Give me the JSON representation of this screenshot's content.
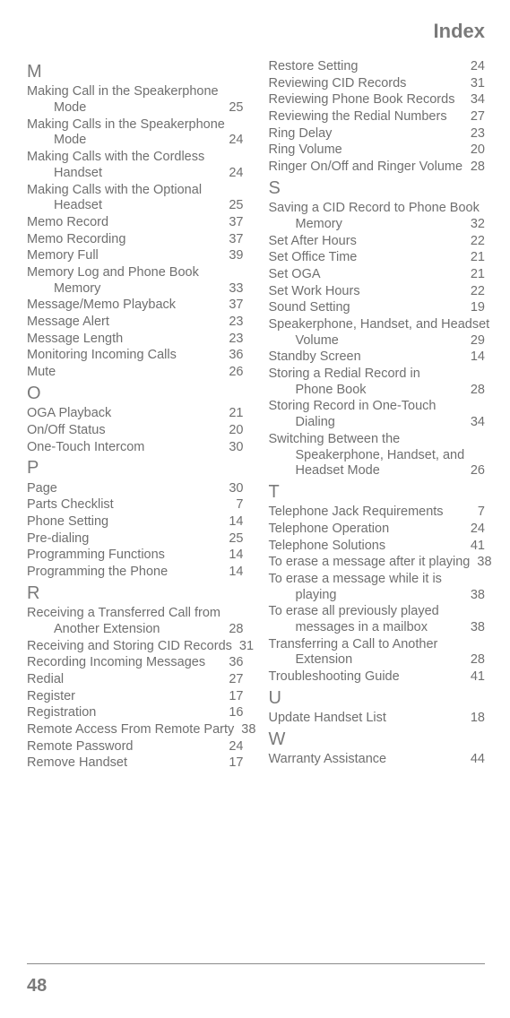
{
  "header_title": "Index",
  "page_number": "48",
  "sections": [
    {
      "letter": "M",
      "entries": [
        {
          "lines": [
            "Making Call in the Speakerphone",
            "Mode"
          ],
          "page": "25"
        },
        {
          "lines": [
            "Making Calls in the Speakerphone",
            "Mode"
          ],
          "page": "24"
        },
        {
          "lines": [
            "Making Calls with the Cordless",
            "Handset"
          ],
          "page": "24"
        },
        {
          "lines": [
            "Making Calls with the Optional",
            "Headset"
          ],
          "page": "25"
        },
        {
          "lines": [
            "Memo Record"
          ],
          "page": "37"
        },
        {
          "lines": [
            "Memo Recording"
          ],
          "page": "37"
        },
        {
          "lines": [
            "Memory Full"
          ],
          "page": "39"
        },
        {
          "lines": [
            "Memory Log and Phone Book",
            "Memory"
          ],
          "page": "33"
        },
        {
          "lines": [
            "Message/Memo Playback"
          ],
          "page": "37"
        },
        {
          "lines": [
            "Message Alert"
          ],
          "page": "23"
        },
        {
          "lines": [
            "Message Length"
          ],
          "page": "23"
        },
        {
          "lines": [
            "Monitoring Incoming Calls"
          ],
          "page": "36"
        },
        {
          "lines": [
            "Mute"
          ],
          "page": "26"
        }
      ]
    },
    {
      "letter": "O",
      "entries": [
        {
          "lines": [
            "OGA Playback"
          ],
          "page": "21"
        },
        {
          "lines": [
            "On/Off Status"
          ],
          "page": "20"
        },
        {
          "lines": [
            "One-Touch Intercom"
          ],
          "page": "30"
        }
      ]
    },
    {
      "letter": "P",
      "entries": [
        {
          "lines": [
            "Page"
          ],
          "page": "30"
        },
        {
          "lines": [
            "Parts Checklist"
          ],
          "page": "7"
        },
        {
          "lines": [
            "Phone Setting"
          ],
          "page": "14"
        },
        {
          "lines": [
            "Pre-dialing"
          ],
          "page": "25"
        },
        {
          "lines": [
            "Programming Functions"
          ],
          "page": "14"
        },
        {
          "lines": [
            "Programming the Phone"
          ],
          "page": "14"
        }
      ]
    },
    {
      "letter": "R",
      "entries": [
        {
          "lines": [
            "Receiving a Transferred Call from",
            "Another Extension"
          ],
          "page": "28"
        },
        {
          "lines": [
            "Receiving and Storing CID Records"
          ],
          "page": "31"
        },
        {
          "lines": [
            "Recording Incoming Messages"
          ],
          "page": "36"
        },
        {
          "lines": [
            "Redial"
          ],
          "page": "27"
        },
        {
          "lines": [
            "Register"
          ],
          "page": "17"
        },
        {
          "lines": [
            "Registration"
          ],
          "page": "16"
        },
        {
          "lines": [
            "Remote Access From Remote Party"
          ],
          "page": "38"
        },
        {
          "lines": [
            "Remote Password"
          ],
          "page": "24"
        },
        {
          "lines": [
            "Remove Handset"
          ],
          "page": "17"
        },
        {
          "lines": [
            "Restore Setting"
          ],
          "page": "24"
        },
        {
          "lines": [
            "Reviewing CID Records"
          ],
          "page": "31"
        },
        {
          "lines": [
            "Reviewing Phone Book Records"
          ],
          "page": "34"
        },
        {
          "lines": [
            "Reviewing the Redial Numbers"
          ],
          "page": "27"
        },
        {
          "lines": [
            "Ring Delay"
          ],
          "page": "23"
        },
        {
          "lines": [
            "Ring Volume"
          ],
          "page": "20"
        },
        {
          "lines": [
            "Ringer On/Off and Ringer Volume"
          ],
          "page": "28"
        }
      ]
    },
    {
      "letter": "S",
      "entries": [
        {
          "lines": [
            "Saving a CID Record to Phone Book",
            "Memory"
          ],
          "page": "32"
        },
        {
          "lines": [
            "Set After Hours"
          ],
          "page": "22"
        },
        {
          "lines": [
            "Set Office Time"
          ],
          "page": "21"
        },
        {
          "lines": [
            "Set OGA"
          ],
          "page": "21"
        },
        {
          "lines": [
            "Set Work Hours"
          ],
          "page": "22"
        },
        {
          "lines": [
            "Sound Setting"
          ],
          "page": "19"
        },
        {
          "lines": [
            "Speakerphone, Handset, and Headset",
            "Volume"
          ],
          "page": "29"
        },
        {
          "lines": [
            "Standby Screen"
          ],
          "page": "14"
        },
        {
          "lines": [
            "Storing a Redial Record in",
            "Phone Book"
          ],
          "page": "28"
        },
        {
          "lines": [
            "Storing Record in One-Touch",
            "Dialing"
          ],
          "page": "34"
        },
        {
          "lines": [
            "Switching Between the",
            "Speakerphone, Handset, and",
            "Headset Mode"
          ],
          "page": "26"
        }
      ]
    },
    {
      "letter": "T",
      "entries": [
        {
          "lines": [
            "Telephone Jack Requirements"
          ],
          "page": "7"
        },
        {
          "lines": [
            "Telephone Operation"
          ],
          "page": "24"
        },
        {
          "lines": [
            "Telephone Solutions"
          ],
          "page": "41"
        },
        {
          "lines": [
            "To erase a message after it playing"
          ],
          "page": "38"
        },
        {
          "lines": [
            "To erase a message while it is",
            "playing"
          ],
          "page": "38"
        },
        {
          "lines": [
            "To erase all previously played",
            "messages in a mailbox"
          ],
          "page": "38"
        },
        {
          "lines": [
            "Transferring a Call to Another",
            "Extension"
          ],
          "page": "28"
        },
        {
          "lines": [
            "Troubleshooting Guide"
          ],
          "page": "41"
        }
      ]
    },
    {
      "letter": "U",
      "entries": [
        {
          "lines": [
            "Update Handset List"
          ],
          "page": "18"
        }
      ]
    },
    {
      "letter": "W",
      "entries": [
        {
          "lines": [
            "Warranty Assistance"
          ],
          "page": "44"
        }
      ]
    }
  ]
}
